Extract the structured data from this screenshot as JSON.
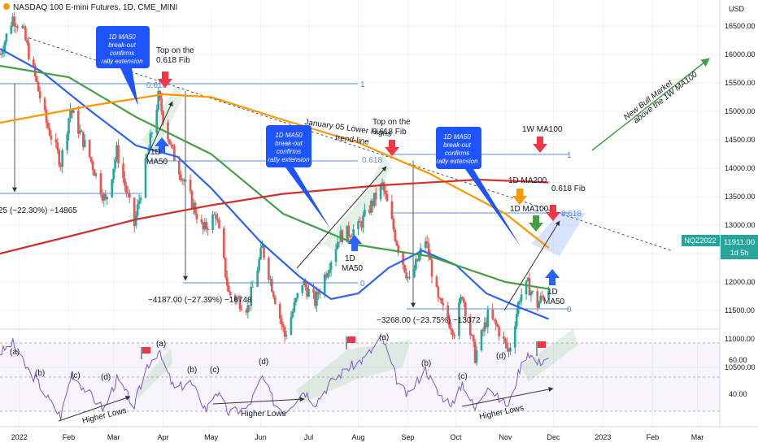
{
  "header": {
    "title": "NASDAQ 100 E-mini Futures, 1D, CME_MINI"
  },
  "colors": {
    "up": "#26a69a",
    "down": "#ef5350",
    "ma50": "#2962ff",
    "ma200": "#43a047",
    "ma100w": "#d32f2f",
    "orange": "#ff9800",
    "callout": "#1e54ff",
    "rsi": "#7e57c2",
    "badge": "#26a69a",
    "arrow_red": "#f23645",
    "arrow_blue": "#2962ff",
    "arrow_green": "#43a047"
  },
  "price_axis": {
    "currency": "USD",
    "ticks": [
      "16500.00",
      "16000.00",
      "15500.00",
      "15000.00",
      "14500.00",
      "14000.00",
      "13500.00",
      "13000.00",
      "12500.00",
      "12000.00",
      "11500.00",
      "11000.00",
      "10500.00"
    ]
  },
  "rsi_axis": {
    "ticks": [
      "60.00",
      "40.00"
    ]
  },
  "time_axis": {
    "labels": [
      "2022",
      "Feb",
      "Mar",
      "Apr",
      "May",
      "Jun",
      "Jul",
      "Aug",
      "Sep",
      "Oct",
      "Nov",
      "Dec",
      "2023",
      "Feb",
      "Mar"
    ]
  },
  "last_price": {
    "symbol": "NQZ2022",
    "value": "11911.00",
    "countdown": "1d 5h"
  },
  "callouts": [
    {
      "lines": [
        "1D MA50",
        "break-out",
        "confirms",
        "rally extension"
      ]
    },
    {
      "lines": [
        "1D MA50",
        "break-out",
        "confirms",
        "rally extension"
      ]
    },
    {
      "lines": [
        "1D MA50",
        "break-out",
        "confirms",
        "rally extension"
      ]
    }
  ],
  "annotations": {
    "top1": [
      "Top on the",
      "0.618 Fib"
    ],
    "top2": [
      "Top on the",
      "0.618 Fib"
    ],
    "jan05": [
      "January 05 Lower Highs",
      "trend-line"
    ],
    "ma50_a": [
      "1D",
      "MA50"
    ],
    "ma50_b": [
      "1D",
      "MA50"
    ],
    "ma50_c": [
      "1D",
      "MA50"
    ],
    "w1ma100": "1W MA100",
    "d1ma200": "1D MA200",
    "d1ma100": "1D MA100",
    "fib618": "0.618 Fib",
    "fib_small": "0.618",
    "bull": [
      "New Bull Market",
      "above the 1W MA100"
    ],
    "fib_one": "1",
    "fib_zero": "0",
    "fib_top": "0.618",
    "fib_mid": "0.618"
  },
  "measurements": {
    "m1": "25 (−22.30%) −14865",
    "m2": "−4187.00 (−27.39%) −16748",
    "m3": "−3268.00 (−23.75%) −13072"
  },
  "rsi_labels": {
    "waves": [
      "(a)",
      "(b)",
      "(c)",
      "(d)",
      "(a)",
      "(b)",
      "(c)",
      "(d)",
      "(a)",
      "(b)",
      "(c)",
      "(d)"
    ],
    "higher_lows": "Higher Lows"
  },
  "chart_data": {
    "type": "candlestick",
    "title": "NASDAQ 100 E-mini Futures, 1D, CME_MINI",
    "ylim": [
      10300,
      16900
    ],
    "xlim": [
      "2021-12-20",
      "2023-03-15"
    ],
    "price_anchors": [
      [
        "2021-12-20",
        16000
      ],
      [
        "2021-12-28",
        16650
      ],
      [
        "2022-01-03",
        16450
      ],
      [
        "2022-01-10",
        15700
      ],
      [
        "2022-01-18",
        14800
      ],
      [
        "2022-01-27",
        14100
      ],
      [
        "2022-02-02",
        15050
      ],
      [
        "2022-02-14",
        14200
      ],
      [
        "2022-02-24",
        13400
      ],
      [
        "2022-03-03",
        14300
      ],
      [
        "2022-03-14",
        13000
      ],
      [
        "2022-03-29",
        15250
      ],
      [
        "2022-04-06",
        14350
      ],
      [
        "2022-04-26",
        12900
      ],
      [
        "2022-05-04",
        13200
      ],
      [
        "2022-05-12",
        11800
      ],
      [
        "2022-05-24",
        11550
      ],
      [
        "2022-06-02",
        12600
      ],
      [
        "2022-06-16",
        11050
      ],
      [
        "2022-06-27",
        12000
      ],
      [
        "2022-07-05",
        11650
      ],
      [
        "2022-07-20",
        12800
      ],
      [
        "2022-08-01",
        12950
      ],
      [
        "2022-08-16",
        13700
      ],
      [
        "2022-08-26",
        12600
      ],
      [
        "2022-09-02",
        12000
      ],
      [
        "2022-09-12",
        12750
      ],
      [
        "2022-09-20",
        11650
      ],
      [
        "2022-09-30",
        11150
      ],
      [
        "2022-10-05",
        11800
      ],
      [
        "2022-10-13",
        10690
      ],
      [
        "2022-10-21",
        11400
      ],
      [
        "2022-10-27",
        11200
      ],
      [
        "2022-11-03",
        10760
      ],
      [
        "2022-11-10",
        11750
      ],
      [
        "2022-11-15",
        11950
      ],
      [
        "2022-11-21",
        11600
      ],
      [
        "2022-11-28",
        11911
      ]
    ],
    "series": [
      {
        "name": "1D MA50",
        "color": "#2962ff",
        "points": [
          [
            "2021-12-20",
            16100
          ],
          [
            "2022-01-15",
            15700
          ],
          [
            "2022-02-15",
            15000
          ],
          [
            "2022-03-15",
            14400
          ],
          [
            "2022-04-10",
            14200
          ],
          [
            "2022-05-01",
            13650
          ],
          [
            "2022-06-01",
            12700
          ],
          [
            "2022-06-25",
            12100
          ],
          [
            "2022-07-15",
            11700
          ],
          [
            "2022-08-01",
            11800
          ],
          [
            "2022-08-20",
            12250
          ],
          [
            "2022-09-10",
            12550
          ],
          [
            "2022-10-01",
            12300
          ],
          [
            "2022-10-20",
            11800
          ],
          [
            "2022-11-10",
            11550
          ],
          [
            "2022-11-28",
            11350
          ]
        ]
      },
      {
        "name": "1D MA100",
        "color": "#43a047",
        "points": [
          [
            "2021-12-20",
            15800
          ],
          [
            "2022-02-01",
            15600
          ],
          [
            "2022-03-15",
            14900
          ],
          [
            "2022-05-01",
            14250
          ],
          [
            "2022-06-15",
            13200
          ],
          [
            "2022-08-01",
            12650
          ],
          [
            "2022-09-15",
            12450
          ],
          [
            "2022-11-01",
            12000
          ],
          [
            "2022-11-28",
            11880
          ]
        ]
      },
      {
        "name": "1D MA200",
        "color": "#ff9800",
        "points": [
          [
            "2021-12-20",
            14800
          ],
          [
            "2022-02-15",
            15100
          ],
          [
            "2022-04-01",
            15300
          ],
          [
            "2022-05-01",
            15250
          ],
          [
            "2022-06-15",
            14850
          ],
          [
            "2022-08-01",
            14450
          ],
          [
            "2022-09-15",
            13900
          ],
          [
            "2022-11-01",
            13200
          ],
          [
            "2022-11-28",
            12600
          ]
        ]
      },
      {
        "name": "1W MA100",
        "color": "#d32f2f",
        "points": [
          [
            "2021-12-20",
            12500
          ],
          [
            "2022-02-01",
            12800
          ],
          [
            "2022-03-15",
            13100
          ],
          [
            "2022-05-01",
            13350
          ],
          [
            "2022-06-15",
            13550
          ],
          [
            "2022-08-15",
            13700
          ],
          [
            "2022-10-15",
            13800
          ],
          [
            "2022-11-28",
            13750
          ]
        ]
      }
    ],
    "rsi": {
      "ylim": [
        20,
        80
      ],
      "levels": [
        70,
        50,
        30
      ],
      "points": [
        [
          "2021-12-20",
          64
        ],
        [
          "2021-12-28",
          70
        ],
        [
          "2022-01-05",
          56
        ],
        [
          "2022-01-12",
          48
        ],
        [
          "2022-01-20",
          36
        ],
        [
          "2022-01-27",
          27
        ],
        [
          "2022-02-03",
          53
        ],
        [
          "2022-02-10",
          44
        ],
        [
          "2022-02-23",
          31
        ],
        [
          "2022-03-03",
          49
        ],
        [
          "2022-03-14",
          33
        ],
        [
          "2022-03-22",
          57
        ],
        [
          "2022-03-29",
          65
        ],
        [
          "2022-04-08",
          43
        ],
        [
          "2022-04-18",
          47
        ],
        [
          "2022-04-28",
          31
        ],
        [
          "2022-05-04",
          42
        ],
        [
          "2022-05-12",
          29
        ],
        [
          "2022-05-24",
          32
        ],
        [
          "2022-06-02",
          50
        ],
        [
          "2022-06-10",
          34
        ],
        [
          "2022-06-16",
          30
        ],
        [
          "2022-06-28",
          42
        ],
        [
          "2022-07-05",
          35
        ],
        [
          "2022-07-15",
          47
        ],
        [
          "2022-07-25",
          55
        ],
        [
          "2022-08-05",
          61
        ],
        [
          "2022-08-16",
          73
        ],
        [
          "2022-08-26",
          46
        ],
        [
          "2022-09-01",
          39
        ],
        [
          "2022-09-12",
          55
        ],
        [
          "2022-09-20",
          40
        ],
        [
          "2022-09-30",
          34
        ],
        [
          "2022-10-05",
          47
        ],
        [
          "2022-10-13",
          31
        ],
        [
          "2022-10-21",
          46
        ],
        [
          "2022-10-27",
          38
        ],
        [
          "2022-11-03",
          33
        ],
        [
          "2022-11-10",
          55
        ],
        [
          "2022-11-15",
          65
        ],
        [
          "2022-11-21",
          58
        ],
        [
          "2022-11-28",
          62
        ]
      ]
    }
  }
}
